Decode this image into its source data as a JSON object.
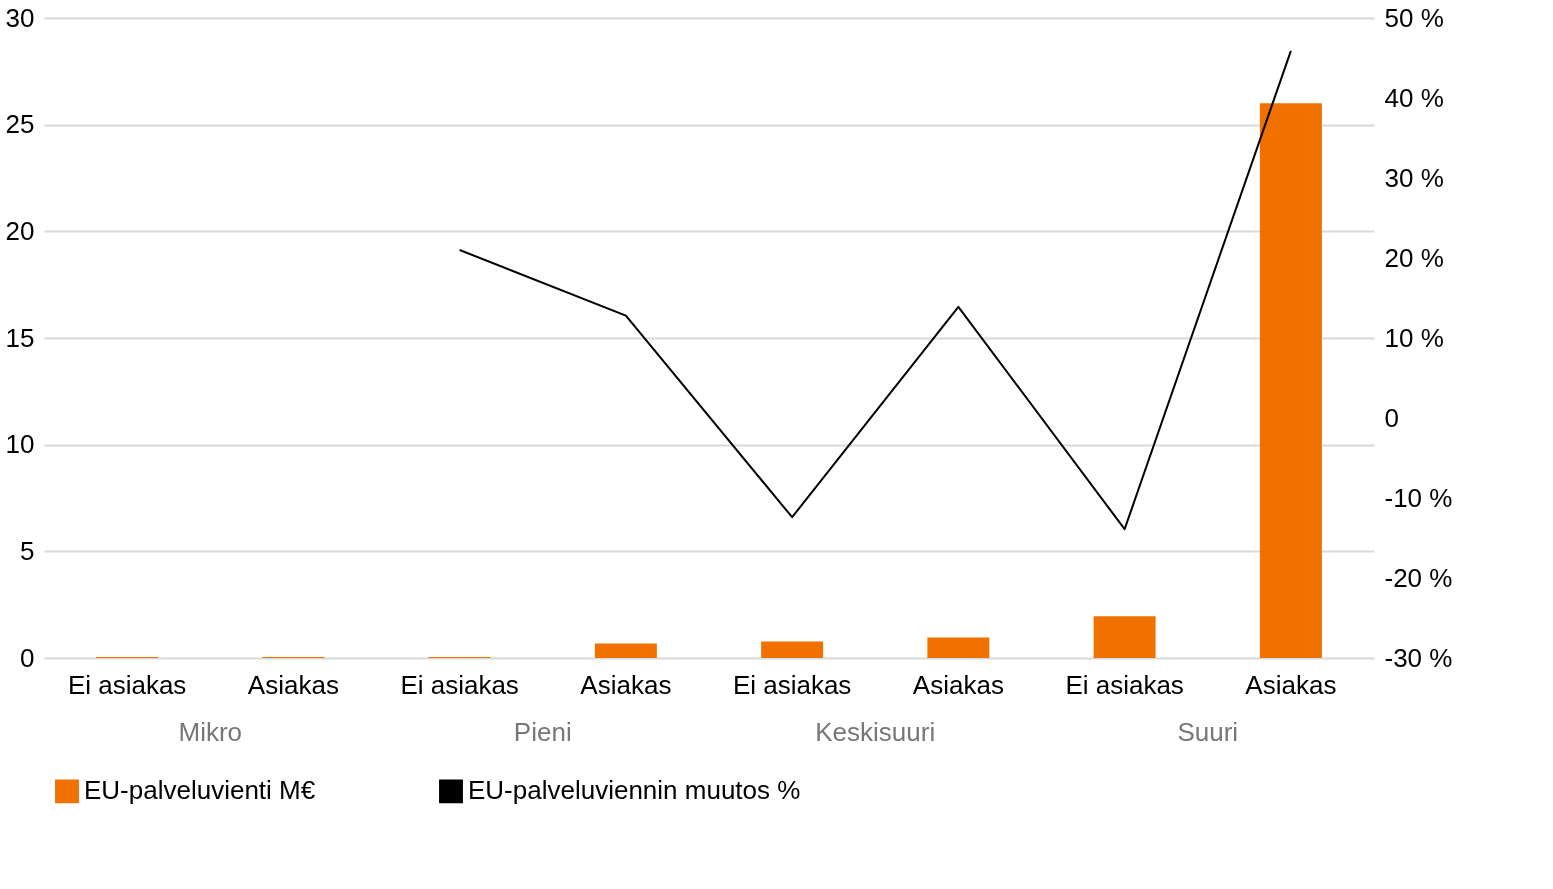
{
  "chart_data": {
    "type": "bar",
    "categories": [
      "Ei asiakas",
      "Asiakas",
      "Ei asiakas",
      "Asiakas",
      "Ei asiakas",
      "Asiakas",
      "Ei asiakas",
      "Asiakas"
    ],
    "annotations": [
      "Mikro",
      "Pieni",
      "Keskisuuri",
      "Suuri"
    ],
    "series": [
      {
        "name": "EU-palveluvienti M€",
        "color": "#f07000",
        "values": [
          0.05,
          0.05,
          0.05,
          0.68,
          0.77,
          0.96,
          1.96,
          26.0
        ]
      },
      {
        "name": "EU-palveluviennin muutos %",
        "type": "line",
        "axis": "y2",
        "color": "#000000",
        "values": [
          null,
          null,
          21.0,
          12.8,
          -12.4,
          13.9,
          -13.9,
          45.9
        ]
      }
    ],
    "ylim": [
      0,
      30
    ],
    "yticks": [
      0,
      5,
      10,
      15,
      20,
      25,
      30
    ],
    "y2lim": [
      -30,
      50
    ],
    "y2ticks": [
      {
        "value": -30,
        "label": "-30 %"
      },
      {
        "value": -20,
        "label": "-20 %"
      },
      {
        "value": -10,
        "label": "-10 %"
      },
      0,
      {
        "value": 10,
        "label": "10 %"
      },
      {
        "value": 20,
        "label": "20 %"
      },
      {
        "value": 30,
        "label": "30 %"
      },
      {
        "value": 40,
        "label": "40 %"
      },
      {
        "value": 50,
        "label": "50 %"
      }
    ],
    "grid": "y",
    "legend": "bottom",
    "marker": "none",
    "line_style": "solid"
  }
}
